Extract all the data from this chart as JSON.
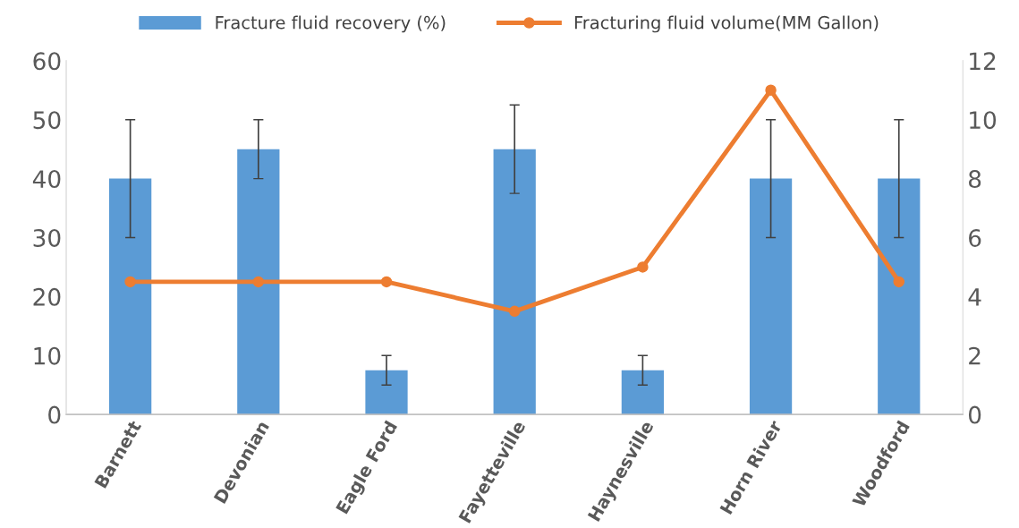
{
  "chart_data": {
    "type": "bar",
    "categories": [
      "Barnett",
      "Devonian",
      "Eagle Ford",
      "Fayetteville",
      "Haynesville",
      "Horn River",
      "Woodford"
    ],
    "series": [
      {
        "name": "Fracture fluid recovery (%)",
        "color": "#5b9bd5",
        "values": [
          40,
          45,
          7.5,
          45,
          7.5,
          40,
          40
        ],
        "errors": [
          [
            30,
            50
          ],
          [
            40,
            50
          ],
          [
            5,
            10
          ],
          [
            37.5,
            52.5
          ],
          [
            5,
            10
          ],
          [
            30,
            50
          ],
          [
            30,
            50
          ]
        ]
      },
      {
        "name": "Fracturing fluid volume(MM Gallon)",
        "type": "line",
        "axis": "y2",
        "color": "#ed7d31",
        "marker": "circle",
        "values": [
          4.5,
          4.5,
          4.5,
          3.5,
          5,
          11,
          4.5
        ]
      }
    ],
    "ylim": [
      0,
      60
    ],
    "yticks": [
      0,
      10,
      20,
      30,
      40,
      50,
      60
    ],
    "y2lim": [
      0,
      12
    ],
    "y2ticks": [
      0,
      2,
      4,
      6,
      8,
      10,
      12
    ],
    "grid": false,
    "legend": "top"
  }
}
